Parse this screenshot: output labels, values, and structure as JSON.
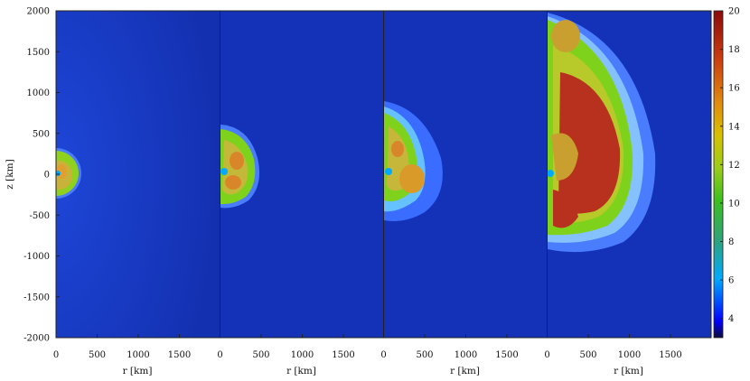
{
  "figure": {
    "y_axis_label": "z [km]",
    "y_ticks": [
      "2000",
      "1500",
      "1000",
      "500",
      "0",
      "-500",
      "-1000",
      "-1500",
      "-2000"
    ],
    "panels": [
      {
        "x_axis_label": "r [km]",
        "x_ticks": [
          "0",
          "500",
          "1000",
          "1500"
        ]
      },
      {
        "x_axis_label": "r [km]",
        "x_ticks": [
          "0",
          "500",
          "1000",
          "1500"
        ]
      },
      {
        "x_axis_label": "r [km]",
        "x_ticks": [
          "0",
          "500",
          "1000",
          "1500"
        ]
      },
      {
        "x_axis_label": "r [km]",
        "x_ticks": [
          "0",
          "500",
          "1000",
          "1500"
        ]
      }
    ],
    "colorbar": {
      "ticks": [
        "20",
        "18",
        "16",
        "14",
        "12",
        "10",
        "8",
        "6",
        "4"
      ],
      "range": [
        3,
        20
      ],
      "colors": [
        "#0b0b3a",
        "#0000ff",
        "#00aaff",
        "#2fa37a",
        "#3cbf1e",
        "#b5d21a",
        "#d8c000",
        "#e08a10",
        "#c83a10",
        "#8b0a0a"
      ]
    },
    "colors": {
      "background_field": "#1432b8",
      "blue_shell": "#4a7cff",
      "green": "#7fd21c",
      "yellow_green": "#b8c92a",
      "orange": "#d9862a",
      "red": "#b8301e"
    }
  }
}
